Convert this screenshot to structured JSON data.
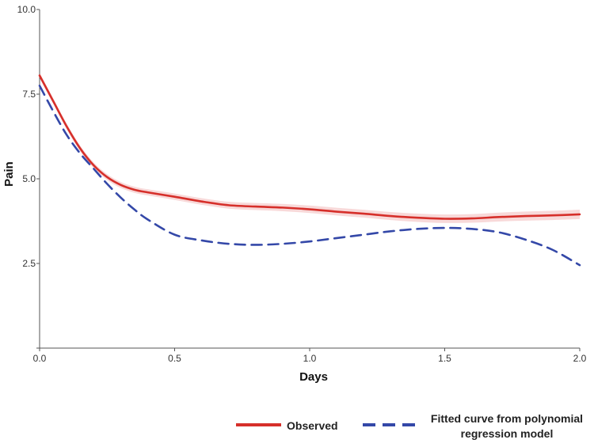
{
  "chart_data": {
    "type": "line",
    "xlabel": "Days",
    "ylabel": "Pain",
    "xlim": [
      0,
      2
    ],
    "ylim": [
      0,
      10
    ],
    "x_ticks": [
      "0.0",
      "0.5",
      "1.0",
      "1.5",
      "2.0"
    ],
    "y_ticks": [
      "2.5",
      "5.0",
      "7.5",
      "10.0"
    ],
    "grid": false,
    "legend_position": "bottom",
    "series": [
      {
        "name": "Observed",
        "color": "#d62f2a",
        "style": "solid",
        "confidence_band": true,
        "x": [
          0.0,
          0.05,
          0.1,
          0.15,
          0.2,
          0.25,
          0.3,
          0.35,
          0.4,
          0.5,
          0.6,
          0.7,
          0.8,
          0.9,
          1.0,
          1.1,
          1.2,
          1.3,
          1.4,
          1.5,
          1.6,
          1.7,
          1.8,
          1.9,
          2.0
        ],
        "y": [
          8.05,
          7.3,
          6.55,
          5.9,
          5.4,
          5.05,
          4.82,
          4.68,
          4.6,
          4.47,
          4.33,
          4.22,
          4.18,
          4.15,
          4.1,
          4.03,
          3.97,
          3.9,
          3.85,
          3.82,
          3.83,
          3.87,
          3.9,
          3.92,
          3.95
        ]
      },
      {
        "name": "Fitted curve from polynomial regression model",
        "color": "#3448a8",
        "style": "dashed",
        "x": [
          0.0,
          0.05,
          0.1,
          0.15,
          0.2,
          0.25,
          0.3,
          0.35,
          0.4,
          0.5,
          0.6,
          0.7,
          0.8,
          0.9,
          1.0,
          1.1,
          1.2,
          1.3,
          1.4,
          1.5,
          1.6,
          1.7,
          1.8,
          1.9,
          2.0
        ],
        "y": [
          7.75,
          7.0,
          6.3,
          5.75,
          5.3,
          4.85,
          4.45,
          4.1,
          3.8,
          3.35,
          3.18,
          3.08,
          3.05,
          3.08,
          3.15,
          3.25,
          3.35,
          3.45,
          3.52,
          3.55,
          3.52,
          3.42,
          3.2,
          2.9,
          2.45
        ]
      }
    ]
  },
  "legend": {
    "observed_label": "Observed",
    "fitted_label_line1": "Fitted curve from polynomial",
    "fitted_label_line2": "regression model"
  }
}
